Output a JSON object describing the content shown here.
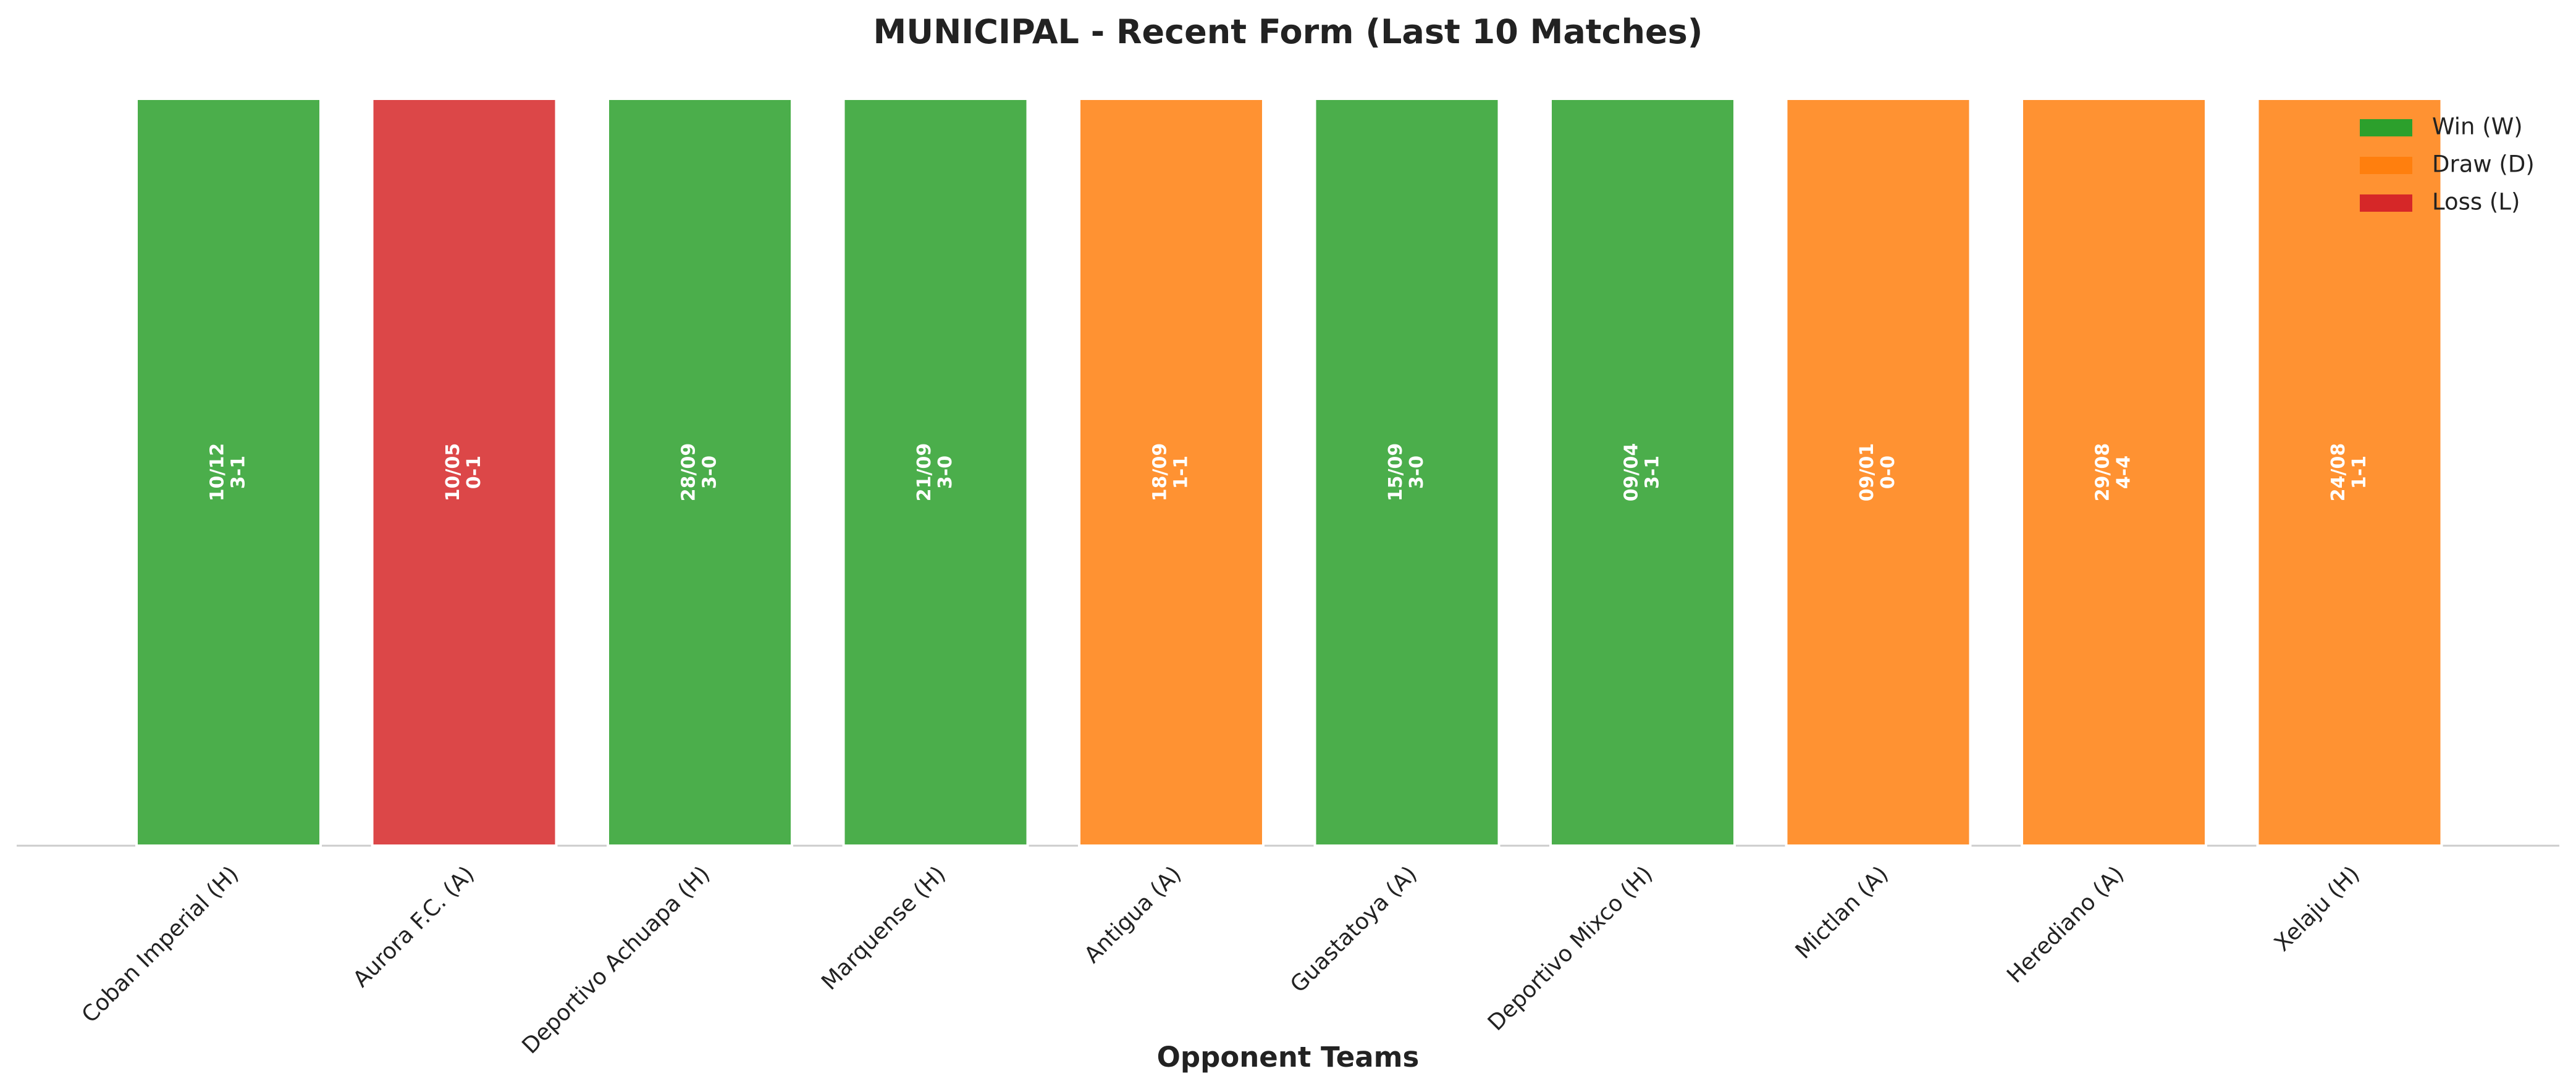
{
  "chart_data": {
    "type": "bar",
    "title": "MUNICIPAL - Recent Form (Last 10 Matches)",
    "x_label": "Opponent Teams",
    "categories": [
      "Coban Imperial (H)",
      "Aurora F.C. (A)",
      "Deportivo Achuapa (H)",
      "Marquense (H)",
      "Antigua (A)",
      "Guastatoya (A)",
      "Deportivo Mixco (H)",
      "Mictlan (A)",
      "Herediano (A)",
      "Xelaju (H)"
    ],
    "values": [
      1,
      1,
      1,
      1,
      1,
      1,
      1,
      1,
      1,
      1
    ],
    "ylim": [
      0,
      1
    ],
    "dates": [
      "10/12",
      "10/05",
      "28/09",
      "21/09",
      "18/09",
      "15/09",
      "09/04",
      "09/01",
      "29/08",
      "24/08"
    ],
    "scores": [
      "3-1",
      "0-1",
      "3-0",
      "3-0",
      "1-1",
      "3-0",
      "3-1",
      "0-0",
      "4-4",
      "1-1"
    ],
    "colors": [
      "#2ca02c",
      "#d62728",
      "#2ca02c",
      "#2ca02c",
      "#ff7f0e",
      "#2ca02c",
      "#2ca02c",
      "#ff7f0e",
      "#ff7f0e",
      "#ff7f0e"
    ],
    "legend": [
      {
        "name": "Win (W)",
        "color": "#2ca02c"
      },
      {
        "name": "Draw (D)",
        "color": "#ff7f0e"
      },
      {
        "name": "Loss (L)",
        "color": "#d62728"
      }
    ],
    "legend_position": "upper right"
  }
}
